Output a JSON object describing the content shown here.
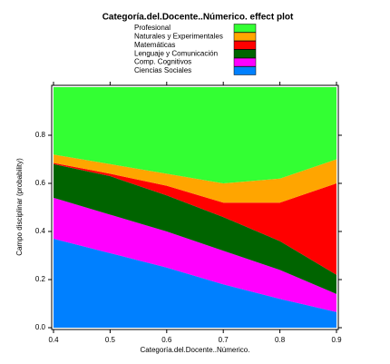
{
  "chart_data": {
    "type": "stacked-area",
    "title": "Categoría.del.Docente..Númerico. effect plot",
    "x_label": "Categoría.del.Docente..Númerico.",
    "y_label": "Campo disciplinar (probability)",
    "x": [
      0.4,
      0.5,
      0.6,
      0.7,
      0.8,
      0.9
    ],
    "series": [
      {
        "name": "Profesional",
        "color": "#33ff33",
        "values": [
          0.28,
          0.32,
          0.36,
          0.4,
          0.38,
          0.3
        ]
      },
      {
        "name": "Naturales y Experimentales",
        "color": "#ffa500",
        "values": [
          0.035,
          0.04,
          0.05,
          0.08,
          0.1,
          0.1
        ]
      },
      {
        "name": "Matemáticas",
        "color": "#ff0000",
        "values": [
          0.005,
          0.01,
          0.04,
          0.06,
          0.16,
          0.38
        ]
      },
      {
        "name": "Lenguaje y Comunicación",
        "color": "#006400",
        "values": [
          0.14,
          0.16,
          0.15,
          0.14,
          0.12,
          0.08
        ]
      },
      {
        "name": "Comp. Cognitivos",
        "color": "#ff00ff",
        "values": [
          0.17,
          0.16,
          0.15,
          0.14,
          0.12,
          0.075
        ]
      },
      {
        "name": "Ciencias Sociales",
        "color": "#0080ff",
        "values": [
          0.37,
          0.31,
          0.25,
          0.18,
          0.12,
          0.065
        ]
      }
    ],
    "xlim": [
      0.4,
      0.9
    ],
    "xticks": [
      0.4,
      0.5,
      0.6,
      0.7,
      0.8,
      0.9
    ],
    "ylim": [
      0,
      1
    ],
    "yticks": [
      {
        "value": 0,
        "label": "0.0"
      },
      0.2,
      0.4,
      0.6,
      0.8
    ]
  }
}
